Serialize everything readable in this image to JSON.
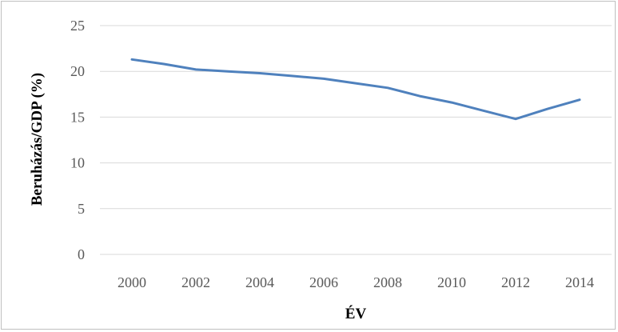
{
  "colors": {
    "series_line": "#4f81bd",
    "gridline": "#d9d9d9",
    "tick_text": "#595959",
    "border": "#bfbfbf"
  },
  "chart_data": {
    "type": "line",
    "xlabel": "ÉV",
    "ylabel": "Beruházás/GDP (%)",
    "ylim": [
      0,
      25
    ],
    "yticks": [
      "0",
      "5",
      "10",
      "15",
      "20",
      "25"
    ],
    "xticks": [
      "2000",
      "2002",
      "2004",
      "2006",
      "2008",
      "2010",
      "2012",
      "2014"
    ],
    "x": [
      2000,
      2001,
      2002,
      2003,
      2004,
      2005,
      2006,
      2007,
      2008,
      2009,
      2010,
      2011,
      2012,
      2013,
      2014
    ],
    "series": [
      {
        "values": [
          21.3,
          20.8,
          20.2,
          20.0,
          19.8,
          19.5,
          19.2,
          18.7,
          18.2,
          17.3,
          16.6,
          15.7,
          14.8,
          15.9,
          16.9
        ]
      }
    ],
    "grid": true,
    "legend": "none"
  }
}
